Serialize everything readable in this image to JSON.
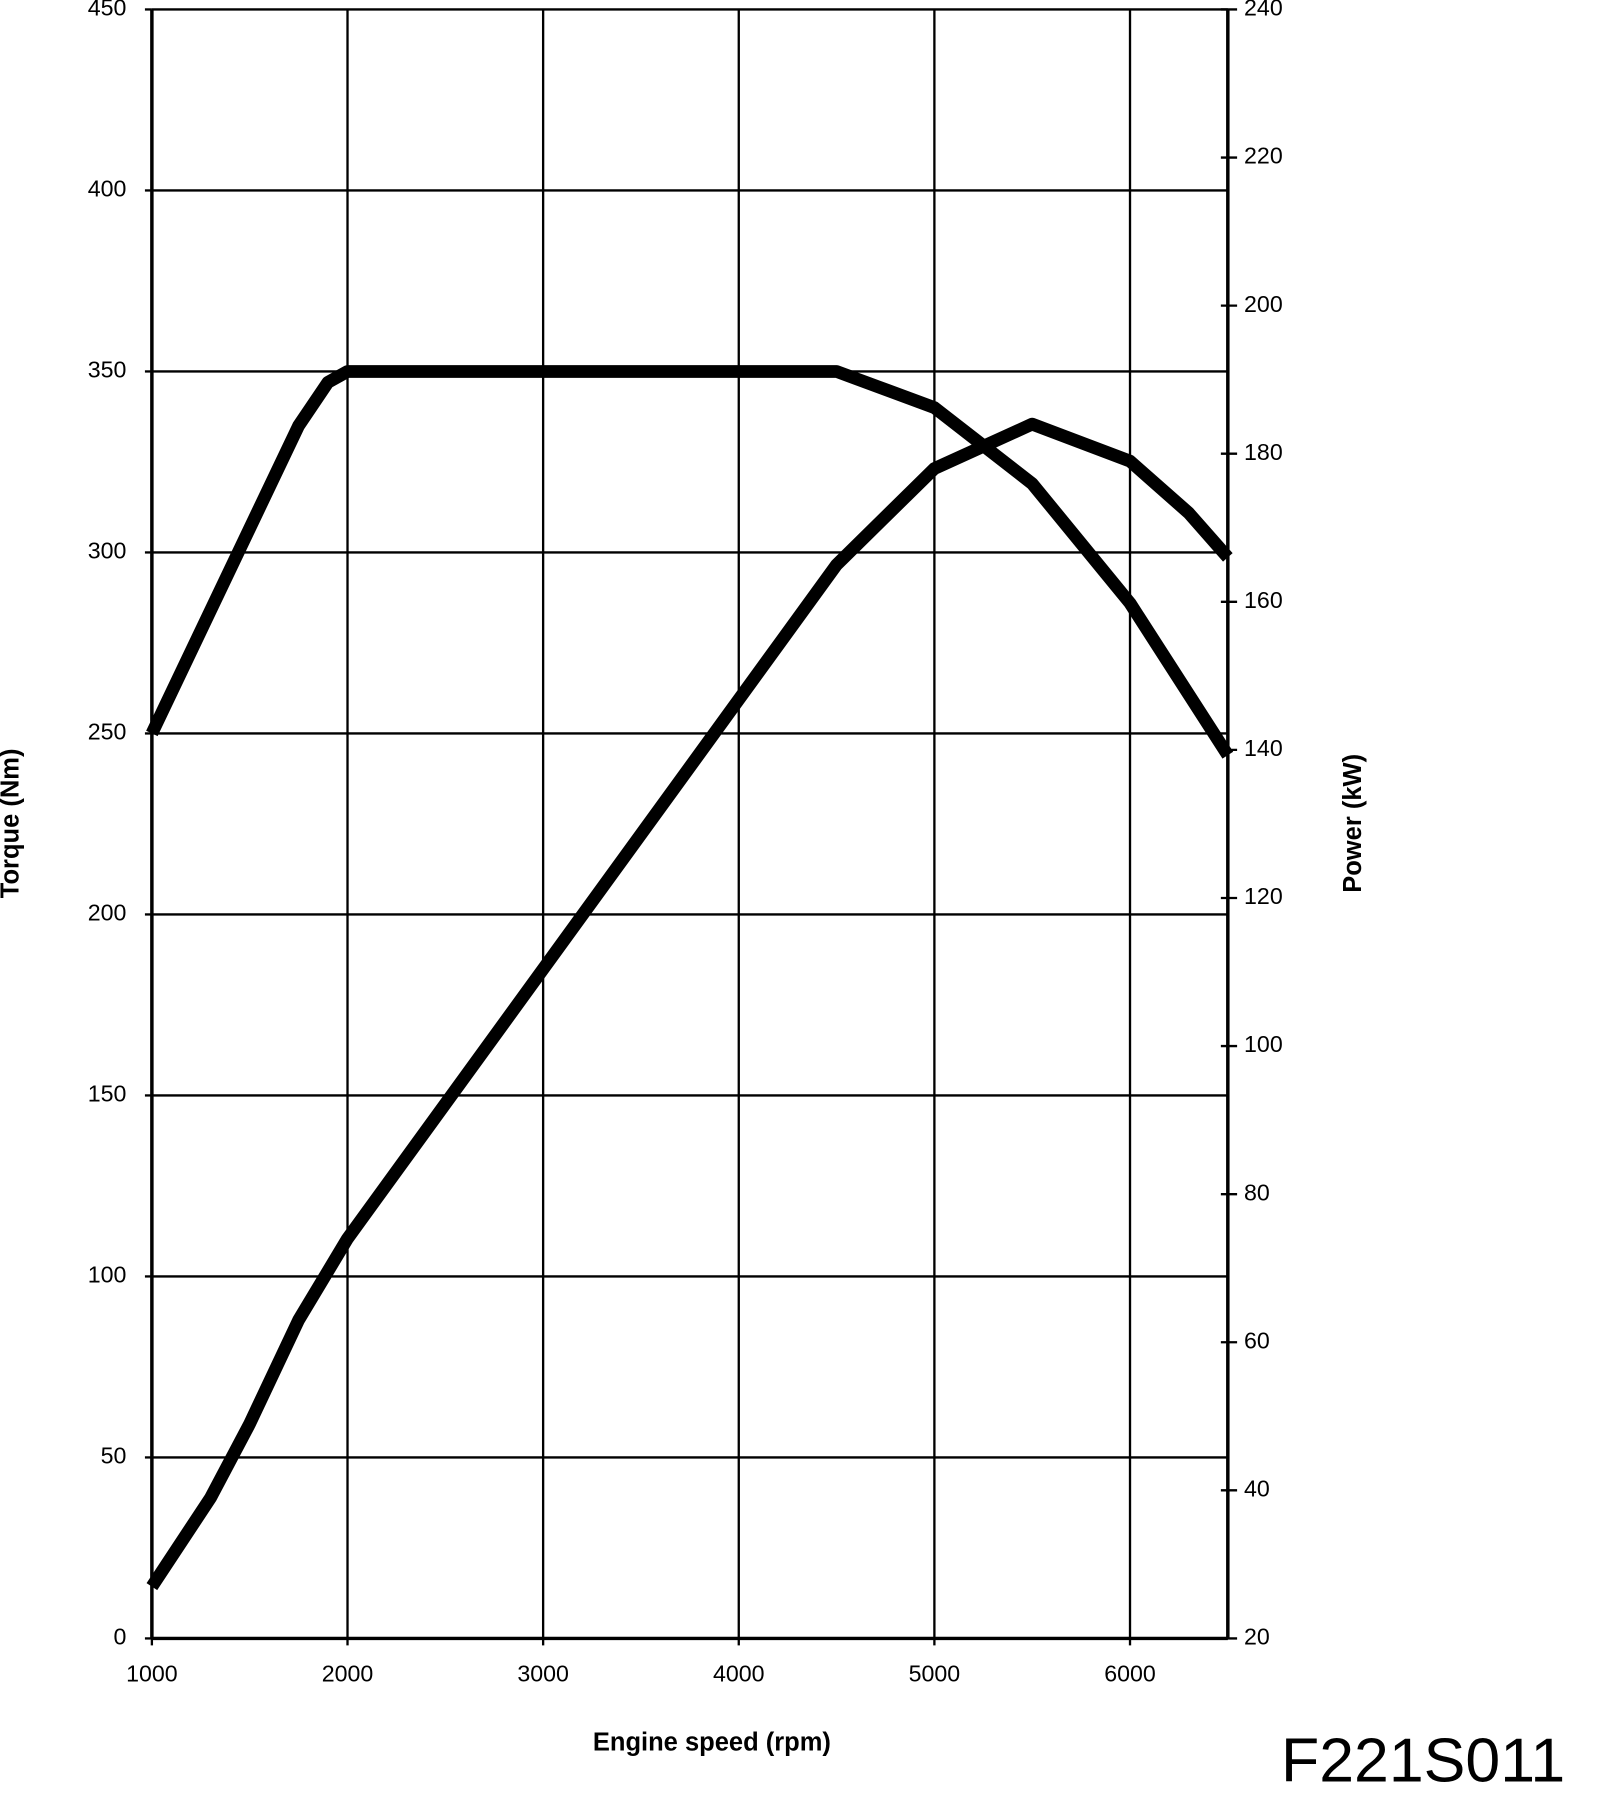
{
  "chart_data": {
    "type": "line",
    "x_label": "Engine speed (rpm)",
    "y_label": "Torque (Nm)",
    "y2_label": "Power (kW)",
    "annotation": "F221S011",
    "xlim": [
      1000,
      6500
    ],
    "xticks": [
      1000,
      2000,
      3000,
      4000,
      5000,
      6000
    ],
    "ylim": [
      0,
      450
    ],
    "yticks": [
      0,
      50,
      100,
      150,
      200,
      250,
      300,
      350,
      400,
      450
    ],
    "y2lim": [
      20,
      240
    ],
    "y2ticks": [
      20,
      40,
      60,
      80,
      100,
      120,
      140,
      160,
      180,
      200,
      220,
      240
    ],
    "grid": true,
    "series": [
      {
        "color": "#000000",
        "x": [
          1000,
          1750,
          1900,
          2000,
          4500,
          5000,
          5500,
          6000,
          6500
        ],
        "values": [
          250,
          335,
          347,
          350,
          350,
          340,
          319,
          286,
          244
        ]
      },
      {
        "color": "#000000",
        "axis": "y2",
        "x": [
          1000,
          1300,
          1500,
          1750,
          2000,
          4500,
          5000,
          5500,
          6000,
          6300,
          6500
        ],
        "values": [
          27,
          39,
          49,
          63,
          74,
          165,
          178,
          184,
          179,
          172,
          166
        ]
      }
    ]
  }
}
